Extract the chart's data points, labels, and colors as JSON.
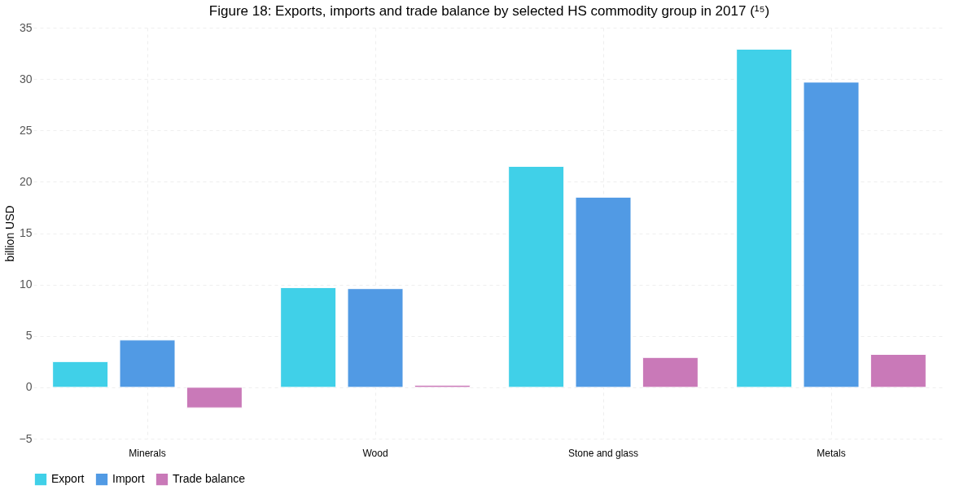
{
  "chart_data": {
    "type": "bar",
    "title": "Figure 18: Exports, imports and trade balance by selected HS commodity group in 2017 (¹⁵)",
    "ylabel": "billion USD",
    "categories": [
      "Minerals",
      "Wood",
      "Stone and glass",
      "Metals"
    ],
    "series": [
      {
        "name": "Export",
        "color": "#40d0e8",
        "values": [
          2.5,
          9.7,
          21.5,
          32.9
        ]
      },
      {
        "name": "Import",
        "color": "#519ae4",
        "values": [
          4.6,
          9.6,
          18.5,
          29.7
        ]
      },
      {
        "name": "Trade balance",
        "color": "#c979b8",
        "values": [
          -2.0,
          0.2,
          2.9,
          3.2
        ]
      }
    ],
    "ylim": [
      -5,
      35
    ],
    "yticks": [
      -5,
      0,
      5,
      10,
      15,
      20,
      25,
      30,
      35
    ],
    "grid": true,
    "legend": "bottom"
  }
}
